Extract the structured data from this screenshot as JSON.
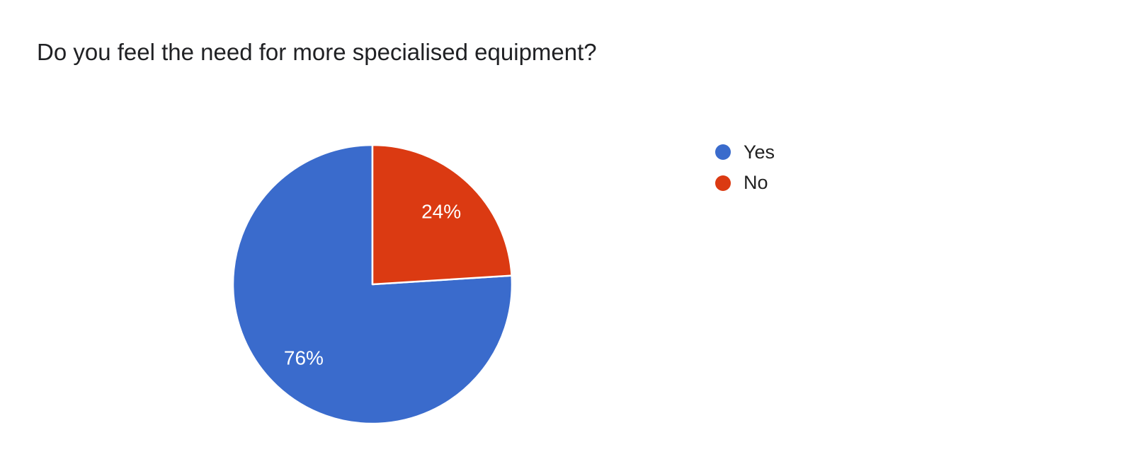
{
  "page": {
    "background": "#FFFFFF"
  },
  "chart_data": {
    "type": "pie",
    "title": "Do you feel the need for more specialised equipment?",
    "categories": [
      "Yes",
      "No"
    ],
    "values": [
      76,
      24
    ],
    "value_unit": "percent",
    "slice_labels": [
      "76%",
      "24%"
    ],
    "colors": [
      "#3A6BCC",
      "#DB3A12"
    ],
    "slice_label_color": "#FFFFFF",
    "slice_border_color": "#FFFFFF",
    "start_angle": "top",
    "direction": "counterclockwise",
    "legend_position": "right",
    "legend": [
      {
        "label": "Yes",
        "color": "#3A6BCC"
      },
      {
        "label": "No",
        "color": "#DB3A12"
      }
    ],
    "title_color": "#202124",
    "legend_text_color": "#212121"
  }
}
